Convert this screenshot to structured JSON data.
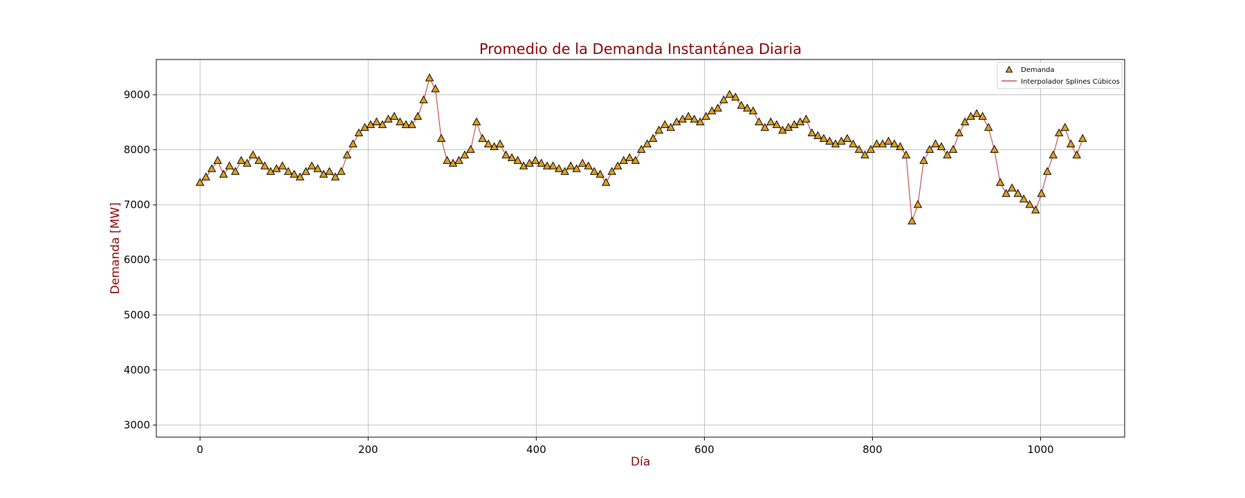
{
  "chart_data": {
    "type": "scatter",
    "title": "Promedio de la Demanda Instantánea Diaria",
    "xlabel": "Día",
    "ylabel": "Demanda [MW]",
    "xlim": [
      -52,
      1100
    ],
    "ylim": [
      2780,
      9640
    ],
    "xticks": [
      0,
      200,
      400,
      600,
      800,
      1000
    ],
    "yticks": [
      3000,
      4000,
      5000,
      6000,
      7000,
      8000,
      9000
    ],
    "grid": true,
    "legend_position": "top-right",
    "colors": {
      "title": "#8b0000",
      "marker_fill": "#e0a020",
      "marker_edge": "#000000",
      "line": "#c0504d"
    },
    "series": [
      {
        "name": "Demanda",
        "kind": "scatter",
        "marker": "triangle",
        "x": [
          0,
          7,
          14,
          21,
          28,
          35,
          42,
          49,
          56,
          63,
          70,
          77,
          84,
          91,
          98,
          105,
          112,
          119,
          126,
          133,
          140,
          147,
          154,
          161,
          168,
          175,
          182,
          189,
          196,
          203,
          210,
          217,
          224,
          231,
          238,
          245,
          252,
          259,
          266,
          273,
          280,
          287,
          294,
          301,
          308,
          315,
          322,
          329,
          336,
          343,
          350,
          357,
          364,
          371,
          378,
          385,
          392,
          399,
          406,
          413,
          420,
          427,
          434,
          441,
          448,
          455,
          462,
          469,
          476,
          483,
          490,
          497,
          504,
          511,
          518,
          525,
          532,
          539,
          546,
          553,
          560,
          567,
          574,
          581,
          588,
          595,
          602,
          609,
          616,
          623,
          630,
          637,
          644,
          651,
          658,
          665,
          672,
          679,
          686,
          693,
          700,
          707,
          714,
          721,
          728,
          735,
          742,
          749,
          756,
          763,
          770,
          777,
          784,
          791,
          798,
          805,
          812,
          819,
          826,
          833,
          840,
          847,
          854,
          861,
          868,
          875,
          882,
          889,
          896,
          903,
          910,
          917,
          924,
          931,
          938,
          945,
          952,
          959,
          966,
          973,
          980,
          987,
          994,
          1001,
          1008,
          1015,
          1022,
          1029,
          1036,
          1043,
          1050
        ],
        "values": [
          7400,
          7500,
          7650,
          7800,
          7550,
          7700,
          7600,
          7800,
          7750,
          7900,
          7800,
          7700,
          7600,
          7650,
          7700,
          7600,
          7550,
          7500,
          7600,
          7700,
          7650,
          7550,
          7600,
          7500,
          7600,
          7900,
          8100,
          8300,
          8400,
          8450,
          8500,
          8450,
          8550,
          8600,
          8500,
          8450,
          8450,
          8600,
          8900,
          9300,
          9100,
          8200,
          7800,
          7750,
          7800,
          7900,
          8000,
          8500,
          8200,
          8100,
          8050,
          8100,
          7900,
          7850,
          7800,
          7700,
          7750,
          7800,
          7750,
          7700,
          7700,
          7650,
          7600,
          7700,
          7650,
          7750,
          7700,
          7600,
          7550,
          7400,
          7600,
          7700,
          7800,
          7850,
          7800,
          8000,
          8100,
          8200,
          8350,
          8450,
          8400,
          8500,
          8550,
          8600,
          8550,
          8500,
          8600,
          8700,
          8750,
          8900,
          9000,
          8950,
          8800,
          8750,
          8700,
          8500,
          8400,
          8500,
          8450,
          8350,
          8400,
          8450,
          8500,
          8550,
          8300,
          8250,
          8200,
          8150,
          8100,
          8150,
          8200,
          8100,
          8000,
          7900,
          8000,
          8100,
          8100,
          8150,
          8100,
          8050,
          7900,
          6700,
          7000,
          7800,
          8000,
          8100,
          8050,
          7900,
          8000,
          8300,
          8500,
          8600,
          8650,
          8600,
          8400,
          8000,
          7400,
          7200,
          7300,
          7200,
          7100,
          7000,
          6900,
          7200,
          7600,
          7900,
          8300,
          8400,
          8100,
          7900,
          8200
        ]
      },
      {
        "name": "Interpolador Splines Cúbicos",
        "kind": "line",
        "x": [
          0,
          7,
          14,
          21,
          28,
          35,
          42,
          49,
          56,
          63,
          70,
          77,
          84,
          91,
          98,
          105,
          112,
          119,
          126,
          133,
          140,
          147,
          154,
          161,
          168,
          175,
          182,
          189,
          196,
          203,
          210,
          217,
          224,
          231,
          238,
          245,
          252,
          259,
          266,
          273,
          280,
          287,
          294,
          301,
          308,
          315,
          322,
          329,
          336,
          343,
          350,
          357,
          364,
          371,
          378,
          385,
          392,
          399,
          406,
          413,
          420,
          427,
          434,
          441,
          448,
          455,
          462,
          469,
          476,
          483,
          490,
          497,
          504,
          511,
          518,
          525,
          532,
          539,
          546,
          553,
          560,
          567,
          574,
          581,
          588,
          595,
          602,
          609,
          616,
          623,
          630,
          637,
          644,
          651,
          658,
          665,
          672,
          679,
          686,
          693,
          700,
          707,
          714,
          721,
          728,
          735,
          742,
          749,
          756,
          763,
          770,
          777,
          784,
          791,
          798,
          805,
          812,
          819,
          826,
          833,
          840,
          847,
          854,
          861,
          868,
          875,
          882,
          889,
          896,
          903,
          910,
          917,
          924,
          931,
          938,
          945,
          952,
          959,
          966,
          973,
          980,
          987,
          994,
          1001,
          1008,
          1015,
          1022,
          1029,
          1036,
          1043,
          1050
        ],
        "values": [
          7400,
          7500,
          7650,
          7800,
          7550,
          7700,
          7600,
          7800,
          7750,
          7900,
          7800,
          7700,
          7600,
          7650,
          7700,
          7600,
          7550,
          7500,
          7600,
          7700,
          7650,
          7550,
          7600,
          7500,
          7600,
          7900,
          8100,
          8300,
          8400,
          8450,
          8500,
          8450,
          8550,
          8600,
          8500,
          8450,
          8450,
          8600,
          8900,
          9300,
          9100,
          8200,
          7800,
          7750,
          7800,
          7900,
          8000,
          8500,
          8200,
          8100,
          8050,
          8100,
          7900,
          7850,
          7800,
          7700,
          7750,
          7800,
          7750,
          7700,
          7700,
          7650,
          7600,
          7700,
          7650,
          7750,
          7700,
          7600,
          7550,
          7400,
          7600,
          7700,
          7800,
          7850,
          7800,
          8000,
          8100,
          8200,
          8350,
          8450,
          8400,
          8500,
          8550,
          8600,
          8550,
          8500,
          8600,
          8700,
          8750,
          8900,
          9000,
          8950,
          8800,
          8750,
          8700,
          8500,
          8400,
          8500,
          8450,
          8350,
          8400,
          8450,
          8500,
          8550,
          8300,
          8250,
          8200,
          8150,
          8100,
          8150,
          8200,
          8100,
          8000,
          7900,
          8000,
          8100,
          8100,
          8150,
          8100,
          8050,
          7900,
          6700,
          7000,
          7800,
          8000,
          8100,
          8050,
          7900,
          8000,
          8300,
          8500,
          8600,
          8650,
          8600,
          8400,
          8000,
          7400,
          7200,
          7300,
          7200,
          7100,
          7000,
          6900,
          7200,
          7600,
          7900,
          8300,
          8400,
          8100,
          7900,
          8200
        ]
      }
    ],
    "legend": [
      {
        "label": "Demanda",
        "marker": "triangle"
      },
      {
        "label": "Interpolador Splines Cúbicos",
        "marker": "line"
      }
    ]
  }
}
